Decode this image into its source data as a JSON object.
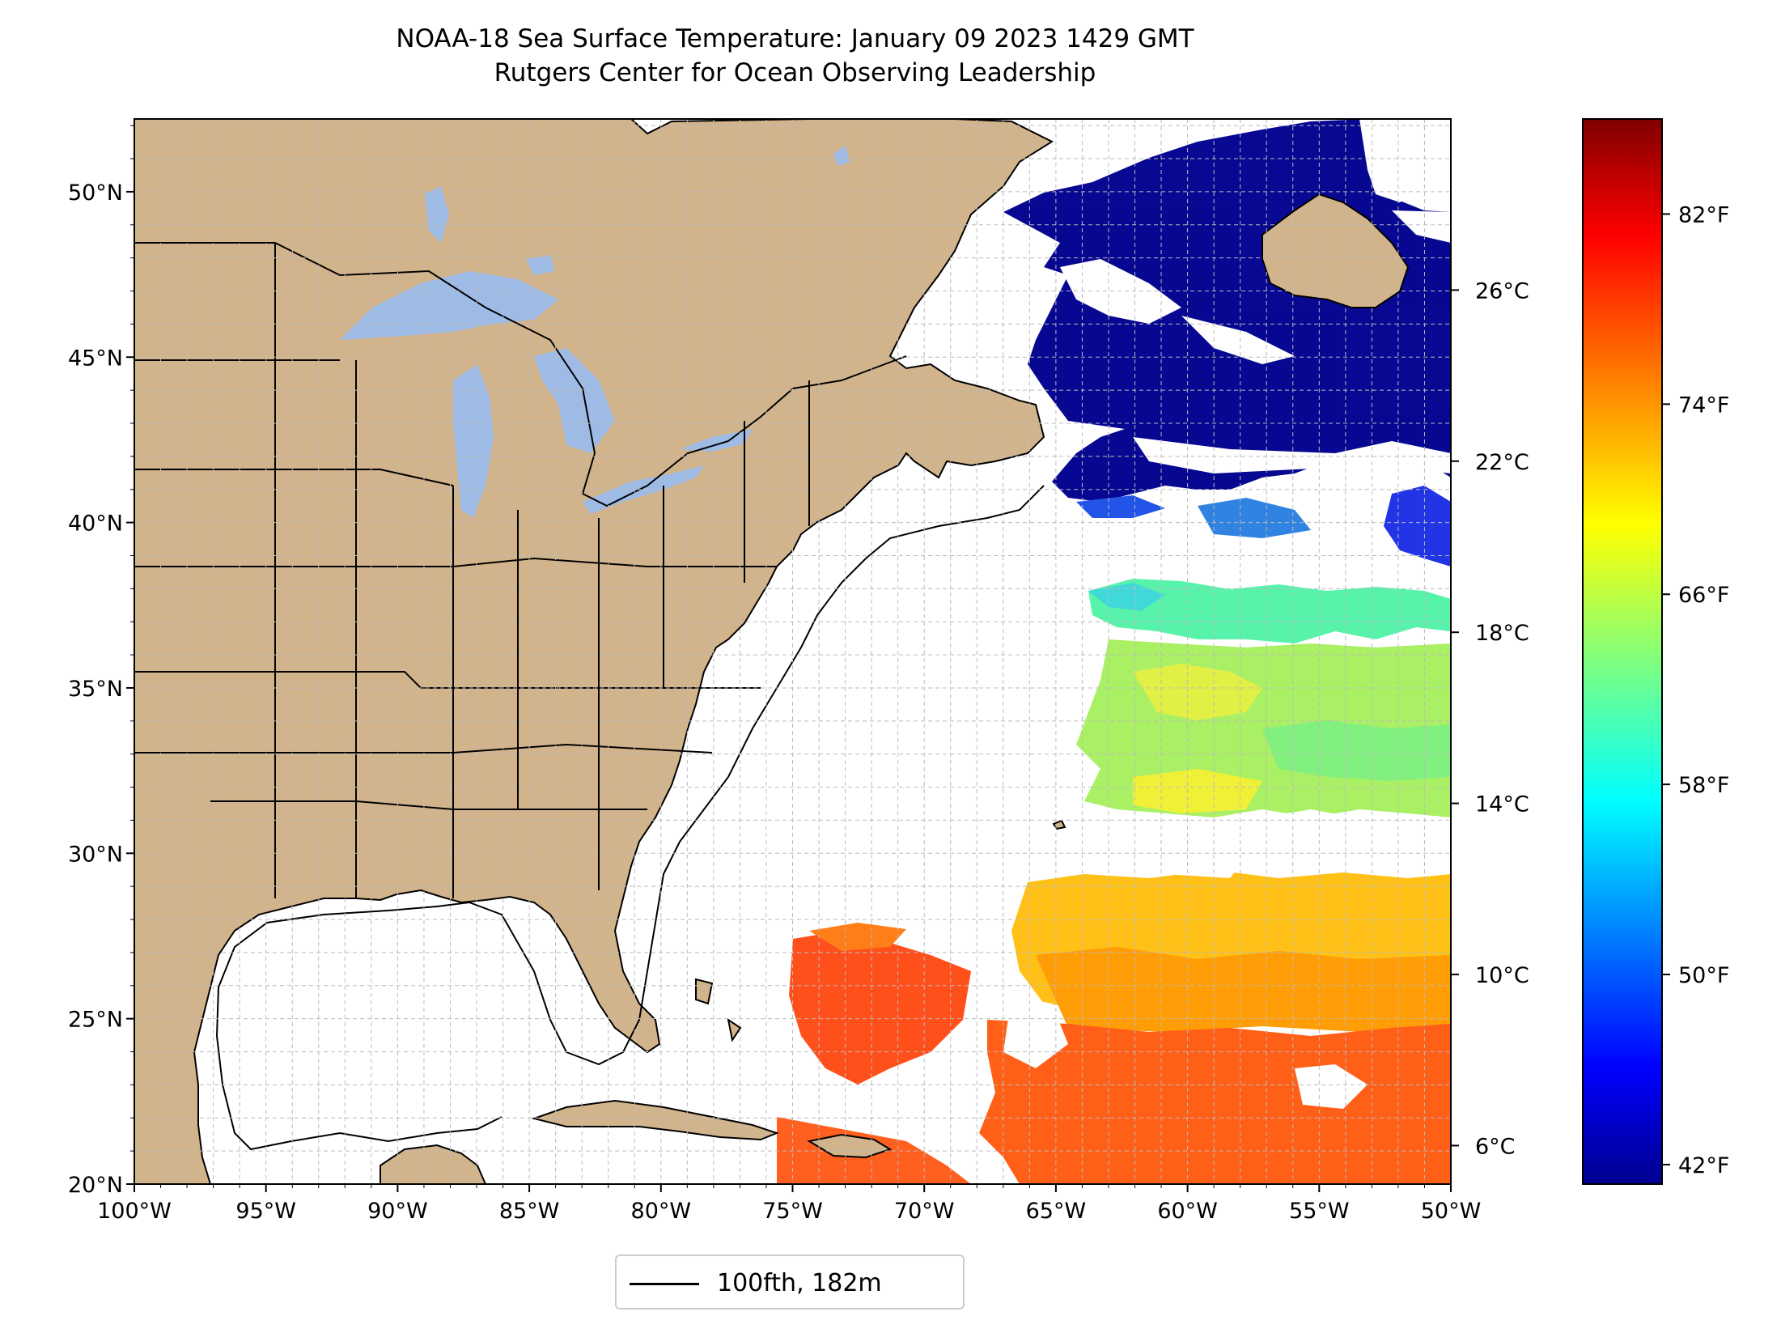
{
  "title": {
    "line1": "NOAA-18 Sea Surface Temperature: January 09 2023 1429 GMT",
    "line2": "Rutgers Center for Ocean Observing Leadership"
  },
  "map": {
    "lon_range": [
      -100,
      -50
    ],
    "lat_range": [
      20,
      52.2
    ],
    "lon_tick_labels": [
      "100°W",
      "95°W",
      "90°W",
      "85°W",
      "80°W",
      "75°W",
      "70°W",
      "65°W",
      "60°W",
      "55°W",
      "50°W"
    ],
    "lat_tick_labels": [
      "20°N",
      "25°N",
      "30°N",
      "35°N",
      "40°N",
      "45°N",
      "50°N"
    ],
    "grid": true,
    "grid_spacing_deg": 1,
    "colors": {
      "land": "#d2b48c",
      "lakes": "#9ebbe6",
      "ocean_no_data": "#ffffff",
      "borders": "#000000",
      "gridlines": "#bbbbbb"
    }
  },
  "colorbar": {
    "colormap": "jet",
    "range_c": [
      5.1,
      30
    ],
    "celsius_ticks": [
      "6°C",
      "10°C",
      "14°C",
      "18°C",
      "22°C",
      "26°C"
    ],
    "fahrenheit_ticks": [
      "42°F",
      "50°F",
      "58°F",
      "66°F",
      "74°F",
      "82°F"
    ]
  },
  "legend": {
    "label": "100fth, 182m",
    "placement": "bottom-center"
  }
}
